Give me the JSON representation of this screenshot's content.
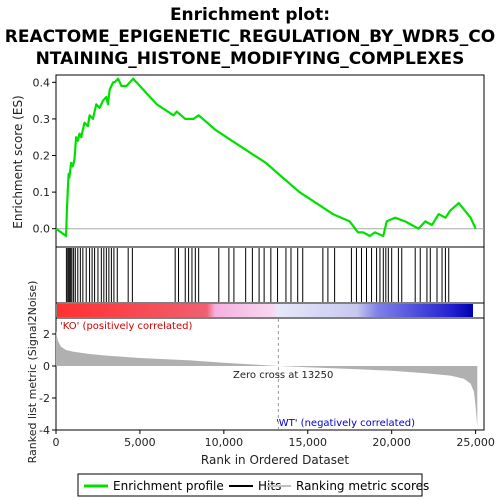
{
  "title_lines": [
    "Enrichment plot:",
    "REACTOME_EPIGENETIC_REGULATION_BY_WDR5_CO",
    "NTAINING_HISTONE_MODIFYING_COMPLEXES"
  ],
  "colors": {
    "enrichment_line": "#00e000",
    "hits": "#000000",
    "ranked_fill": "#b0b0b0",
    "pos_label": "#cc0000",
    "neg_label": "#0000cc",
    "frame": "#000000",
    "zero_line": "#aaaaaa"
  },
  "chart_data": [
    {
      "type": "line",
      "panel": "enrichment",
      "ylabel": "Enrichment score (ES)",
      "ylim": [
        -0.05,
        0.42
      ],
      "yticks": [
        "0.0",
        "0.1",
        "0.2",
        "0.3",
        "0.4"
      ],
      "ytick_values": [
        0.0,
        0.1,
        0.2,
        0.3,
        0.4
      ],
      "xlim": [
        0,
        25500
      ],
      "series": [
        {
          "name": "Enrichment profile",
          "x": [
            0,
            600,
            650,
            700,
            750,
            800,
            900,
            1000,
            1100,
            1200,
            1300,
            1400,
            1500,
            1700,
            1900,
            2000,
            2200,
            2400,
            2600,
            2800,
            3000,
            3100,
            3200,
            3300,
            3400,
            3500,
            3700,
            3900,
            4200,
            4400,
            4600,
            5000,
            6000,
            7000,
            7200,
            7700,
            8200,
            8500,
            9500,
            10500,
            11500,
            12500,
            13500,
            14500,
            15500,
            16500,
            17500,
            18000,
            18300,
            18700,
            19000,
            19500,
            19700,
            20200,
            20800,
            21200,
            21600,
            22000,
            22400,
            22800,
            23200,
            23500,
            24000,
            24700,
            25000
          ],
          "y": [
            0.0,
            -0.02,
            0.05,
            0.1,
            0.15,
            0.14,
            0.18,
            0.17,
            0.19,
            0.25,
            0.24,
            0.26,
            0.25,
            0.29,
            0.28,
            0.31,
            0.3,
            0.34,
            0.33,
            0.35,
            0.36,
            0.34,
            0.38,
            0.39,
            0.4,
            0.4,
            0.41,
            0.39,
            0.39,
            0.4,
            0.41,
            0.39,
            0.34,
            0.31,
            0.32,
            0.3,
            0.3,
            0.31,
            0.27,
            0.24,
            0.21,
            0.18,
            0.14,
            0.1,
            0.07,
            0.04,
            0.02,
            -0.01,
            -0.01,
            -0.02,
            -0.01,
            -0.02,
            0.02,
            0.03,
            0.02,
            0.01,
            0.0,
            0.02,
            0.01,
            0.04,
            0.03,
            0.05,
            0.07,
            0.03,
            0.0
          ]
        }
      ]
    },
    {
      "type": "scatter",
      "panel": "hits",
      "series": [
        {
          "name": "Hits",
          "x": [
            620,
            700,
            760,
            820,
            880,
            950,
            1050,
            1150,
            1300,
            1450,
            1600,
            1800,
            2000,
            2150,
            2300,
            2500,
            2700,
            2850,
            3000,
            3150,
            3300,
            3450,
            3650,
            4300,
            4550,
            7100,
            7300,
            7700,
            7900,
            8100,
            8300,
            8500,
            9700,
            10300,
            10600,
            11300,
            11700,
            12100,
            12400,
            12800,
            13200,
            13700,
            14000,
            14400,
            14700,
            15900,
            16200,
            16600,
            17600,
            17900,
            18200,
            18500,
            18800,
            19100,
            19300,
            19500,
            19650,
            19800,
            20000,
            20400,
            20600,
            21400,
            21700,
            22100,
            22300,
            22700,
            23000,
            23200,
            23400
          ]
        }
      ]
    },
    {
      "type": "area",
      "panel": "ranked_metric",
      "ylabel": "Ranked list metric (Signal2Noise)",
      "xlabel": "Rank in Ordered Dataset",
      "ylim": [
        -4,
        3
      ],
      "yticks": [
        "2",
        "0",
        "-2",
        "-4"
      ],
      "ytick_values": [
        2,
        0,
        -2,
        -4
      ],
      "xlim": [
        0,
        25500
      ],
      "xticks": [
        "0",
        "5,000",
        "10,000",
        "15,000",
        "20,000",
        "25,000"
      ],
      "xtick_values": [
        0,
        5000,
        10000,
        15000,
        20000,
        25000
      ],
      "x": [
        0,
        100,
        300,
        600,
        1000,
        2000,
        3000,
        5000,
        8000,
        10000,
        12000,
        13250,
        15000,
        18000,
        20000,
        22000,
        23500,
        24300,
        24700,
        24900,
        25000,
        25100
      ],
      "values": [
        2.2,
        1.6,
        1.2,
        1.0,
        0.9,
        0.75,
        0.65,
        0.5,
        0.35,
        0.2,
        0.08,
        0.0,
        -0.08,
        -0.2,
        -0.3,
        -0.45,
        -0.6,
        -0.8,
        -1.1,
        -1.6,
        -2.5,
        -3.8
      ],
      "annotations": {
        "pos_label": "'KO' (positively correlated)",
        "neg_label": "'WT' (negatively correlated)",
        "zero_cross": "Zero cross at 13250",
        "zero_cross_x": 13250
      }
    }
  ],
  "legend": [
    {
      "label": "Enrichment profile",
      "kind": "line-green"
    },
    {
      "label": "Hits",
      "kind": "line-black"
    },
    {
      "label": "Ranking metric scores",
      "kind": "line-gray"
    }
  ]
}
